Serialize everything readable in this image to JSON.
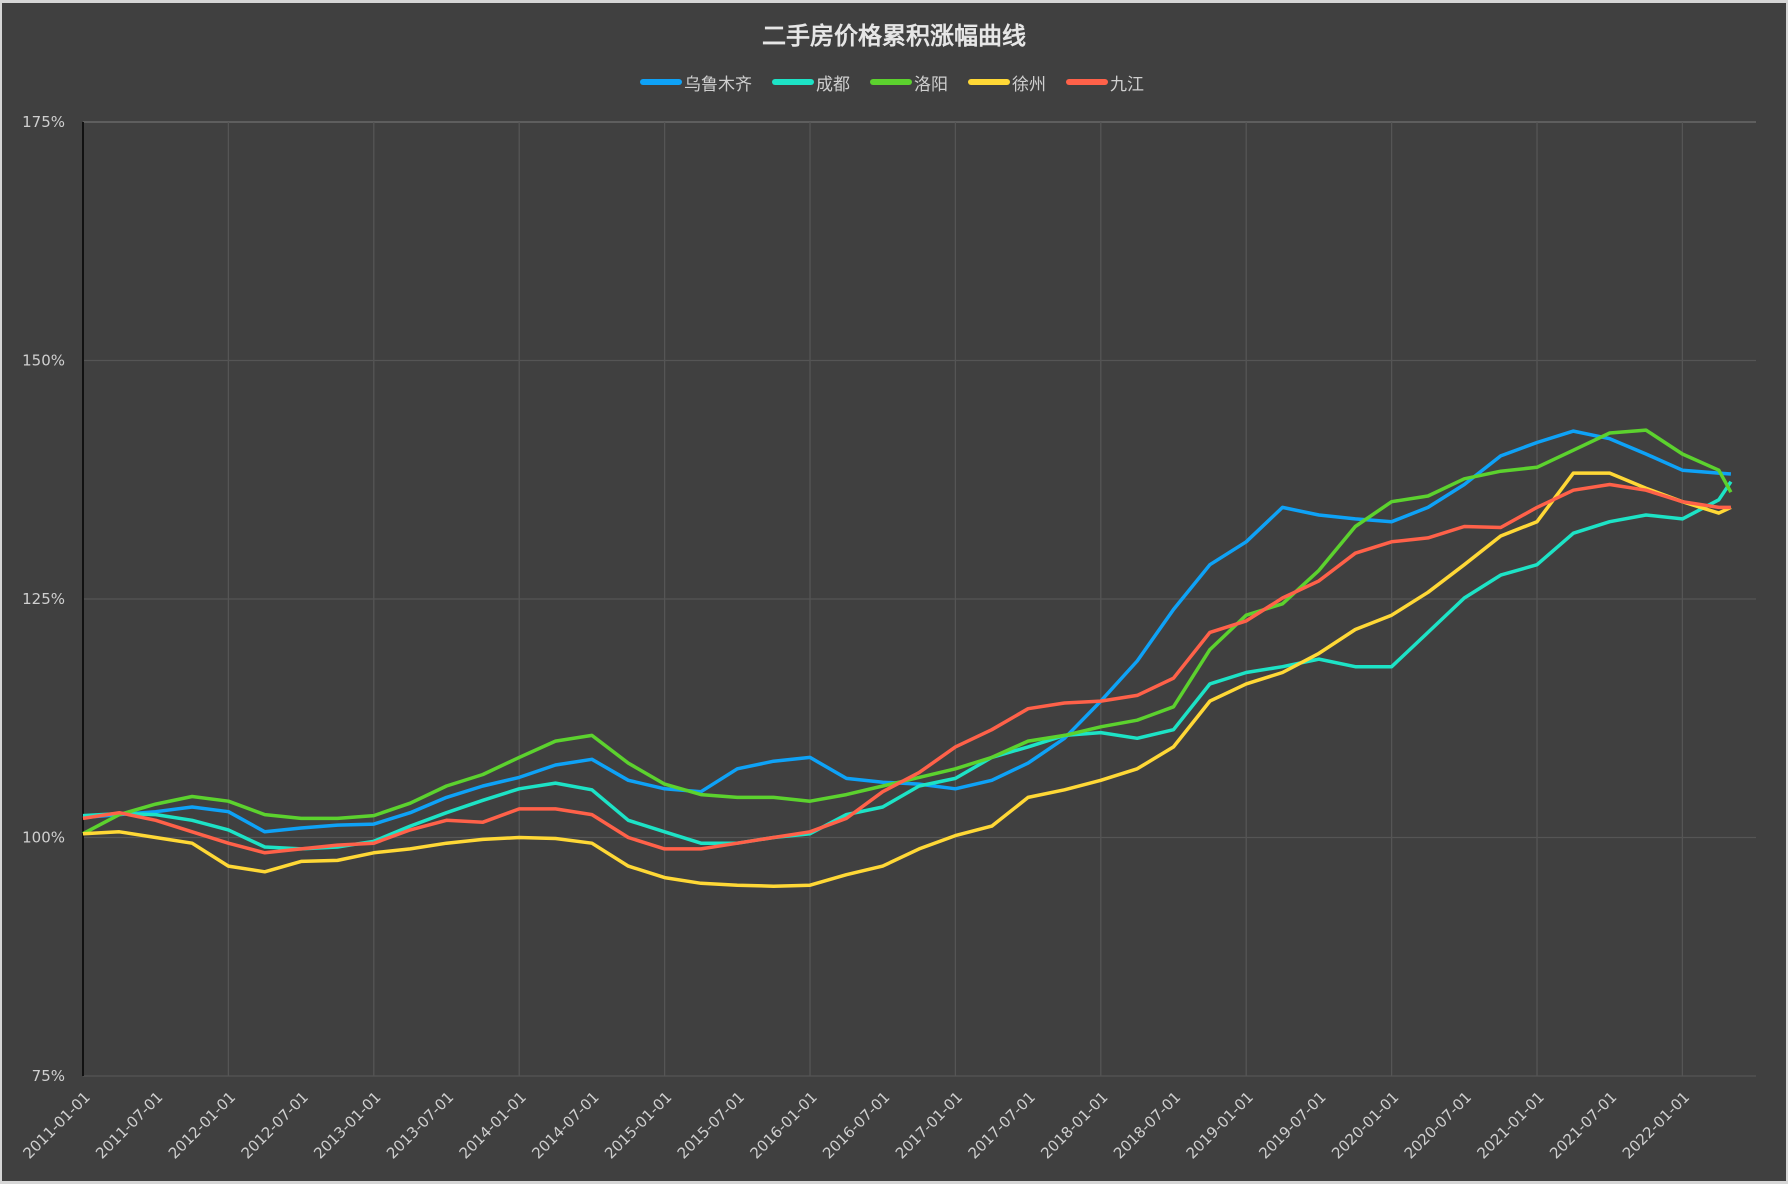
{
  "chart_data": {
    "type": "line",
    "title": "二手房价格累积涨幅曲线",
    "xlabel": "",
    "ylabel": "",
    "ylim": [
      75,
      175
    ],
    "yticks": [
      "75%",
      "100%",
      "125%",
      "150%",
      "175%"
    ],
    "ytick_values": [
      75,
      100,
      125,
      150,
      175
    ],
    "xticks": [
      "2011-01-01",
      "2011-07-01",
      "2012-01-01",
      "2012-07-01",
      "2013-01-01",
      "2013-07-01",
      "2014-01-01",
      "2014-07-01",
      "2015-01-01",
      "2015-07-01",
      "2016-01-01",
      "2016-07-01",
      "2017-01-01",
      "2017-07-01",
      "2018-01-01",
      "2018-07-01",
      "2019-01-01",
      "2019-07-01",
      "2020-01-01",
      "2020-07-01",
      "2021-01-01",
      "2021-07-01",
      "2022-01-01"
    ],
    "grid": true,
    "legend_position": "top-center",
    "x": [
      "2011-01",
      "2011-04",
      "2011-07",
      "2011-10",
      "2012-01",
      "2012-04",
      "2012-07",
      "2012-10",
      "2013-01",
      "2013-04",
      "2013-07",
      "2013-10",
      "2014-01",
      "2014-04",
      "2014-07",
      "2014-10",
      "2015-01",
      "2015-04",
      "2015-07",
      "2015-10",
      "2016-01",
      "2016-04",
      "2016-07",
      "2016-10",
      "2017-01",
      "2017-04",
      "2017-07",
      "2017-10",
      "2018-01",
      "2018-04",
      "2018-07",
      "2018-10",
      "2019-01",
      "2019-04",
      "2019-07",
      "2019-10",
      "2020-01",
      "2020-04",
      "2020-07",
      "2020-10",
      "2021-01",
      "2021-04",
      "2021-07",
      "2021-10",
      "2022-01",
      "2022-04",
      "2022-05"
    ],
    "series": [
      {
        "name": "乌鲁木齐",
        "color": "#0ea2f7",
        "values": [
          102.1,
          102.4,
          102.7,
          103.2,
          102.7,
          100.6,
          101,
          101.3,
          101.4,
          102.6,
          104.2,
          105.4,
          106.3,
          107.6,
          108.2,
          106,
          105.1,
          104.8,
          107.2,
          108,
          108.4,
          106.2,
          105.8,
          105.6,
          105.1,
          106,
          107.8,
          110.4,
          114.3,
          118.5,
          123.9,
          128.6,
          131,
          134.6,
          133.8,
          133.4,
          133.1,
          134.6,
          137,
          140,
          141.4,
          142.6,
          141.8,
          140.2,
          138.5,
          138.2,
          138.1
        ]
      },
      {
        "name": "成都",
        "color": "#1de3c6",
        "values": [
          102.3,
          102.5,
          102.4,
          101.8,
          100.8,
          99.0,
          98.8,
          99,
          99.6,
          101.2,
          102.6,
          103.9,
          105.1,
          105.7,
          105,
          101.8,
          100.6,
          99.4,
          99.4,
          100,
          100.4,
          102.4,
          103.2,
          105.4,
          106.2,
          108.4,
          109.5,
          110.7,
          111,
          110.4,
          111.3,
          116.1,
          117.3,
          117.9,
          118.7,
          117.9,
          117.9,
          121.5,
          125.1,
          127.5,
          128.6,
          131.9,
          133.1,
          133.8,
          133.4,
          135.4,
          137.3
        ]
      },
      {
        "name": "洛阳",
        "color": "#5cd22e",
        "values": [
          100.4,
          102.4,
          103.5,
          104.3,
          103.8,
          102.4,
          102,
          102,
          102.3,
          103.6,
          105.4,
          106.6,
          108.4,
          110.1,
          110.7,
          107.8,
          105.6,
          104.5,
          104.2,
          104.2,
          103.8,
          104.5,
          105.4,
          106.3,
          107.2,
          108.4,
          110.1,
          110.7,
          111.6,
          112.3,
          113.7,
          119.7,
          123.3,
          124.5,
          128,
          132.6,
          135.2,
          135.8,
          137.6,
          138.4,
          138.8,
          140.6,
          142.4,
          142.7,
          140.2,
          138.5,
          136.2
        ]
      },
      {
        "name": "徐州",
        "color": "#ffd836",
        "values": [
          100.4,
          100.6,
          100,
          99.4,
          97,
          96.4,
          97.5,
          97.6,
          98.4,
          98.8,
          99.4,
          99.8,
          100,
          99.9,
          99.4,
          97,
          95.8,
          95.2,
          95,
          94.9,
          95,
          96.1,
          97,
          98.8,
          100.2,
          101.2,
          104.2,
          105,
          106,
          107.2,
          109.5,
          114.3,
          116.1,
          117.3,
          119.3,
          121.8,
          123.3,
          125.7,
          128.6,
          131.6,
          133.1,
          138.2,
          138.2,
          136.6,
          135.2,
          134,
          134.6
        ]
      },
      {
        "name": "九江",
        "color": "#ff6149",
        "values": [
          102,
          102.6,
          101.8,
          100.6,
          99.4,
          98.4,
          98.8,
          99.2,
          99.4,
          100.8,
          101.8,
          101.6,
          103,
          103,
          102.4,
          100,
          98.8,
          98.8,
          99.4,
          100,
          100.6,
          102,
          104.8,
          106.8,
          109.5,
          111.3,
          113.5,
          114.1,
          114.3,
          114.9,
          116.7,
          121.5,
          122.7,
          125.1,
          126.9,
          129.8,
          131,
          131.4,
          132.6,
          132.5,
          134.6,
          136.4,
          137,
          136.4,
          135.2,
          134.6,
          134.6
        ]
      }
    ]
  }
}
